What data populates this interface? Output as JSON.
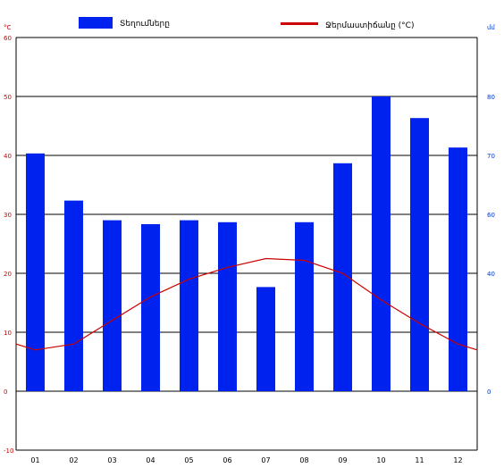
{
  "chart_data": {
    "type": "bar",
    "categories": [
      "01",
      "02",
      "03",
      "04",
      "05",
      "06",
      "07",
      "08",
      "09",
      "10",
      "11",
      "12"
    ],
    "series": [
      {
        "name": "Տեղումները",
        "kind": "bar",
        "axis": "right",
        "color": "#0022ee",
        "values": [
          75.5,
          63.5,
          58.5,
          57.5,
          58.5,
          58,
          41.5,
          58,
          73,
          90,
          84.5,
          77
        ]
      },
      {
        "name": "Ջերմաստիճանը (°C)",
        "kind": "line",
        "axis": "left",
        "color": "#cc0000",
        "values": [
          7,
          8,
          12,
          16,
          19,
          21,
          22.5,
          22.2,
          20,
          15.5,
          11.5,
          8
        ]
      }
    ],
    "left_axis": {
      "label": "°C",
      "range": [
        -10,
        60
      ],
      "ticks": [
        "60",
        "50",
        "40",
        "30",
        "20",
        "10",
        "0",
        "-10"
      ],
      "tick_values": [
        60,
        50,
        40,
        30,
        20,
        10,
        0,
        -10
      ]
    },
    "right_axis": {
      "label": "մմ",
      "ticks": [
        "80",
        "70",
        "60",
        "40",
        "0"
      ],
      "tick_values": [
        80,
        70,
        60,
        40,
        0
      ],
      "tick_positions_on_left_scale": [
        50,
        40,
        30,
        20,
        0
      ]
    },
    "grid": true,
    "legend_position": "top"
  }
}
